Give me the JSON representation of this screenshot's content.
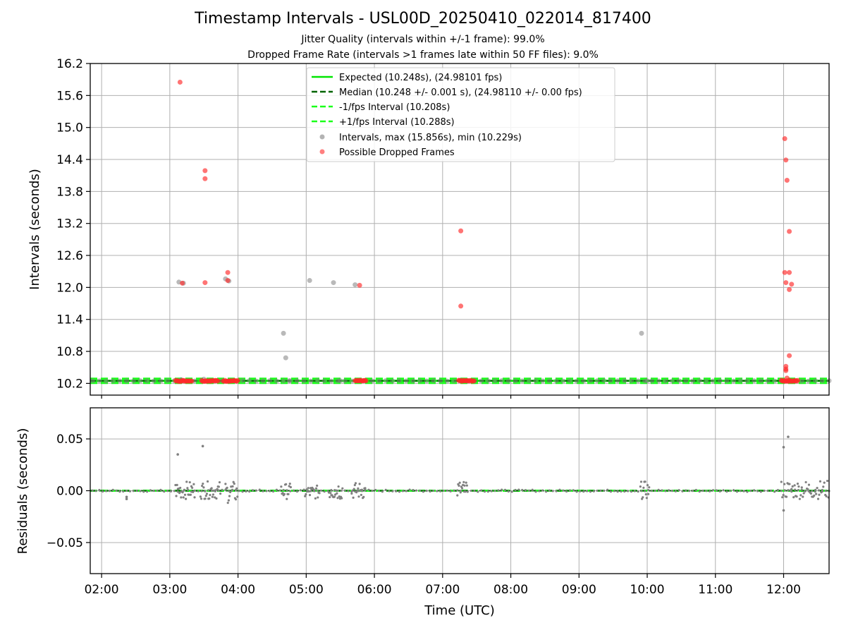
{
  "header": {
    "title": "Timestamp Intervals - USL00D_20250410_022014_817400",
    "subtitle_1": "Jitter Quality (intervals within +/-1 frame): 99.0%",
    "subtitle_2": "Dropped Frame Rate (intervals >1 frames late within 50 FF files): 9.0%"
  },
  "colors": {
    "expected": "#00e600",
    "median": "#006400",
    "interval_bounds": "#1aff1a",
    "intervals": "#808080",
    "dropped": "#ff2a2a"
  },
  "chart_data": [
    {
      "type": "scatter",
      "panel": "intervals",
      "ylabel": "Intervals (seconds)",
      "ylim": [
        9.98,
        16.2
      ],
      "y_ticks": [
        10.2,
        10.8,
        11.4,
        12.0,
        12.6,
        13.2,
        13.8,
        14.4,
        15.0,
        15.6,
        16.2
      ],
      "y_tick_labels": [
        "10.2",
        "10.8",
        "11.4",
        "12.0",
        "12.6",
        "13.2",
        "13.8",
        "14.4",
        "15.0",
        "15.6",
        "16.2"
      ],
      "xlim": [
        "01:50",
        "12:40"
      ],
      "grid": true,
      "legend_position": "upper center",
      "reference_lines": [
        {
          "name": "Expected (10.248s), (24.98101 fps)",
          "value": 10.248,
          "style": "solid"
        },
        {
          "name": "Median (10.248 +/- 0.001 s), (24.98110 +/- 0.00 fps)",
          "value": 10.248,
          "style": "dashed"
        },
        {
          "name": "-1/fps Interval (10.208s)",
          "value": 10.208,
          "style": "dashed"
        },
        {
          "name": "+1/fps Interval (10.288s)",
          "value": 10.288,
          "style": "dashed"
        }
      ],
      "series": [
        {
          "name": "Intervals, max (15.856s), min (10.229s)",
          "points": [
            [
              "03:08",
              12.1
            ],
            [
              "03:12",
              12.08
            ],
            [
              "03:30",
              10.28
            ],
            [
              "03:49",
              12.16
            ],
            [
              "03:52",
              12.12
            ],
            [
              "04:40",
              11.14
            ],
            [
              "04:42",
              10.68
            ],
            [
              "05:03",
              12.13
            ],
            [
              "05:24",
              12.09
            ],
            [
              "05:43",
              12.05
            ],
            [
              "09:55",
              11.14
            ],
            [
              "03:10",
              10.27
            ],
            [
              "04:45",
              10.25
            ],
            [
              "05:30",
              10.25
            ],
            [
              "07:15",
              10.26
            ],
            [
              "10:00",
              10.25
            ]
          ]
        },
        {
          "name": "Possible Dropped Frames",
          "points": [
            [
              "03:09",
              15.85
            ],
            [
              "03:11",
              12.08
            ],
            [
              "03:31",
              14.19
            ],
            [
              "03:31",
              14.04
            ],
            [
              "03:31",
              12.09
            ],
            [
              "03:51",
              12.28
            ],
            [
              "03:51",
              12.13
            ],
            [
              "05:47",
              12.04
            ],
            [
              "07:16",
              13.06
            ],
            [
              "07:16",
              11.65
            ],
            [
              "12:01",
              14.79
            ],
            [
              "12:02",
              14.39
            ],
            [
              "12:03",
              14.01
            ],
            [
              "12:05",
              13.05
            ],
            [
              "12:01",
              12.28
            ],
            [
              "12:05",
              12.28
            ],
            [
              "12:02",
              12.09
            ],
            [
              "12:07",
              12.06
            ],
            [
              "12:05",
              11.96
            ],
            [
              "12:05",
              10.72
            ],
            [
              "12:02",
              10.52
            ],
            [
              "12:02",
              10.47
            ],
            [
              "12:02",
              10.44
            ],
            [
              "12:03",
              10.3
            ]
          ]
        }
      ],
      "dropped_clusters": [
        [
          "03:05",
          "03:20"
        ],
        [
          "03:28",
          "03:43"
        ],
        [
          "03:47",
          "04:00"
        ],
        [
          "05:43",
          "05:53"
        ],
        [
          "07:14",
          "07:28"
        ],
        [
          "11:58",
          "12:13"
        ]
      ],
      "dropped_cluster_value": 10.248
    },
    {
      "type": "scatter",
      "panel": "residuals",
      "ylabel": "Residuals (seconds)",
      "xlabel": "Time (UTC)",
      "ylim": [
        -0.08,
        0.08
      ],
      "y_ticks": [
        -0.05,
        0.0,
        0.05
      ],
      "y_tick_labels": [
        "−0.05",
        "0.00",
        "0.05"
      ],
      "xlim": [
        "01:50",
        "12:40"
      ],
      "x_ticks": [
        "02:00",
        "03:00",
        "04:00",
        "05:00",
        "06:00",
        "07:00",
        "08:00",
        "09:00",
        "10:00",
        "11:00",
        "12:00"
      ],
      "grid": true,
      "series": [
        {
          "name": "Residuals",
          "points": [
            [
              "03:07",
              0.035
            ],
            [
              "03:29",
              0.043
            ],
            [
              "12:00",
              0.042
            ],
            [
              "12:04",
              0.052
            ],
            [
              "12:00",
              -0.019
            ],
            [
              "02:22",
              -0.006
            ],
            [
              "02:22",
              -0.008
            ]
          ]
        }
      ],
      "residual_clusters": [
        [
          "03:05",
          "03:22",
          0.009,
          -0.008
        ],
        [
          "03:27",
          "03:45",
          0.009,
          -0.008
        ],
        [
          "03:49",
          "04:00",
          0.009,
          -0.012
        ],
        [
          "04:38",
          "04:47",
          0.007,
          -0.008
        ],
        [
          "04:59",
          "05:12",
          0.005,
          -0.008
        ],
        [
          "05:20",
          "05:32",
          0.01,
          -0.009
        ],
        [
          "05:40",
          "05:52",
          0.008,
          -0.008
        ],
        [
          "07:13",
          "07:22",
          0.01,
          -0.008
        ],
        [
          "09:54",
          "10:02",
          0.009,
          -0.008
        ],
        [
          "11:58",
          "12:40",
          0.01,
          -0.008
        ]
      ]
    }
  ]
}
